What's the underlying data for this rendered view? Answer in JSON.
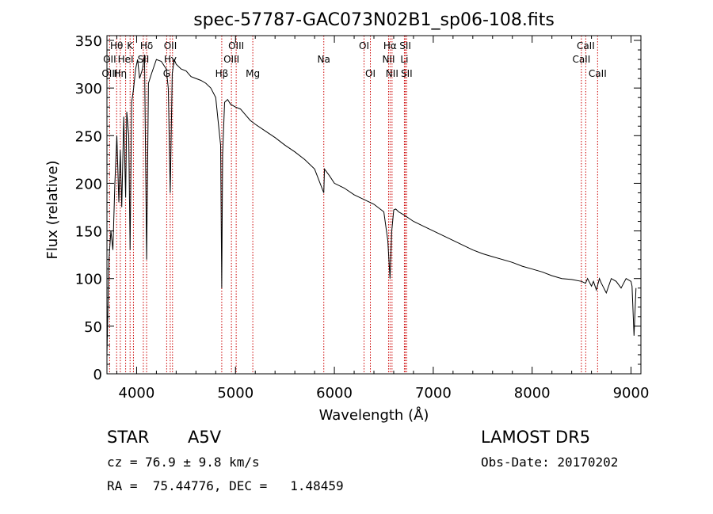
{
  "chart_data": {
    "type": "line",
    "title": "spec-57787-GAC073N02B1_sp06-108.fits",
    "xlabel": "Wavelength (Å)",
    "ylabel": "Flux (relative)",
    "xlim": [
      3700,
      9100
    ],
    "ylim": [
      0,
      355
    ],
    "xticks": [
      4000,
      5000,
      6000,
      7000,
      8000,
      9000
    ],
    "xtick_labels": [
      "4000",
      "5000",
      "6000",
      "7000",
      "8000",
      "9000"
    ],
    "yticks": [
      0,
      50,
      100,
      150,
      200,
      250,
      300,
      350
    ],
    "ytick_labels": [
      "0",
      "50",
      "100",
      "150",
      "200",
      "250",
      "300",
      "350"
    ],
    "grid": false,
    "series": [
      {
        "x": [
          3700,
          3720,
          3740,
          3760,
          3780,
          3800,
          3820,
          3835,
          3850,
          3870,
          3889,
          3900,
          3920,
          3934,
          3950,
          3970,
          3990,
          4010,
          4030,
          4060,
          4080,
          4101,
          4120,
          4150,
          4200,
          4250,
          4300,
          4320,
          4340,
          4360,
          4380,
          4400,
          4450,
          4500,
          4550,
          4600,
          4650,
          4700,
          4750,
          4800,
          4830,
          4850,
          4861,
          4870,
          4890,
          4920,
          4950,
          5000,
          5050,
          5100,
          5150,
          5200,
          5300,
          5400,
          5500,
          5600,
          5700,
          5800,
          5893,
          5900,
          5950,
          6000,
          6100,
          6200,
          6300,
          6400,
          6500,
          6540,
          6563,
          6580,
          6600,
          6620,
          6650,
          6700,
          6800,
          6900,
          7000,
          7100,
          7200,
          7300,
          7400,
          7500,
          7600,
          7700,
          7800,
          7900,
          8000,
          8100,
          8200,
          8300,
          8400,
          8500,
          8540,
          8560,
          8600,
          8620,
          8650,
          8680,
          8700,
          8750,
          8800,
          8850,
          8900,
          8950,
          9000,
          9010,
          9030,
          9050
        ],
        "y": [
          20,
          120,
          150,
          130,
          200,
          250,
          180,
          235,
          175,
          270,
          185,
          275,
          250,
          130,
          285,
          300,
          320,
          330,
          310,
          320,
          335,
          120,
          305,
          315,
          330,
          328,
          320,
          300,
          190,
          315,
          330,
          325,
          320,
          318,
          312,
          310,
          308,
          305,
          300,
          290,
          260,
          240,
          90,
          230,
          285,
          288,
          283,
          280,
          278,
          272,
          266,
          262,
          255,
          248,
          240,
          233,
          225,
          215,
          190,
          215,
          208,
          200,
          195,
          188,
          183,
          178,
          170,
          140,
          100,
          150,
          172,
          173,
          170,
          167,
          160,
          155,
          150,
          145,
          140,
          135,
          130,
          126,
          123,
          120,
          117,
          113,
          110,
          107,
          103,
          100,
          99,
          97,
          95,
          100,
          92,
          97,
          88,
          100,
          95,
          85,
          100,
          97,
          90,
          100,
          97,
          92,
          40,
          90
        ]
      }
    ],
    "line_annotations": [
      {
        "label": "Hθ",
        "x": 3798,
        "row": 1
      },
      {
        "label": "K",
        "x": 3934,
        "row": 1
      },
      {
        "label": "Hδ",
        "x": 4101,
        "row": 1
      },
      {
        "label": "OII",
        "x": 4341,
        "row": 1
      },
      {
        "label": "OIII",
        "x": 5007,
        "row": 1
      },
      {
        "label": "OI",
        "x": 6300,
        "row": 1
      },
      {
        "label": "Hα",
        "x": 6563,
        "row": 1
      },
      {
        "label": "SII",
        "x": 6717,
        "row": 1
      },
      {
        "label": "CaII",
        "x": 8542,
        "row": 1
      },
      {
        "label": "OII",
        "x": 3727,
        "row": 2
      },
      {
        "label": "HeI",
        "x": 3889,
        "row": 2
      },
      {
        "label": "SII",
        "x": 4068,
        "row": 2
      },
      {
        "label": "Hγ",
        "x": 4340,
        "row": 2
      },
      {
        "label": "OIII",
        "x": 4959,
        "row": 2
      },
      {
        "label": "Na",
        "x": 5893,
        "row": 2
      },
      {
        "label": "NII",
        "x": 6548,
        "row": 2
      },
      {
        "label": "Li",
        "x": 6708,
        "row": 2
      },
      {
        "label": "CaII",
        "x": 8498,
        "row": 2
      },
      {
        "label": "OIII",
        "x": 3727,
        "row": 3
      },
      {
        "label": "Hη",
        "x": 3835,
        "row": 3
      },
      {
        "label": "G",
        "x": 4304,
        "row": 3
      },
      {
        "label": "Hβ",
        "x": 4861,
        "row": 3
      },
      {
        "label": "Mg",
        "x": 5175,
        "row": 3
      },
      {
        "label": "OI",
        "x": 6364,
        "row": 3
      },
      {
        "label": "NII",
        "x": 6583,
        "row": 3
      },
      {
        "label": "SII",
        "x": 6731,
        "row": 3
      },
      {
        "label": "CaII",
        "x": 8662,
        "row": 3
      }
    ],
    "line_marker_x": [
      3727,
      3798,
      3835,
      3889,
      3934,
      3968,
      4068,
      4101,
      4304,
      4340,
      4363,
      4861,
      4959,
      5007,
      5175,
      5893,
      6300,
      6364,
      6548,
      6563,
      6583,
      6708,
      6717,
      6731,
      8498,
      8542,
      8662
    ]
  },
  "info": {
    "class_label": "STAR",
    "subclass_label": "A5V",
    "survey": "LAMOST DR5",
    "cz": "cz = 76.9 ± 9.8 km/s",
    "obs_date": "Obs-Date: 20170202",
    "radec": "RA =  75.44776, DEC =   1.48459"
  }
}
